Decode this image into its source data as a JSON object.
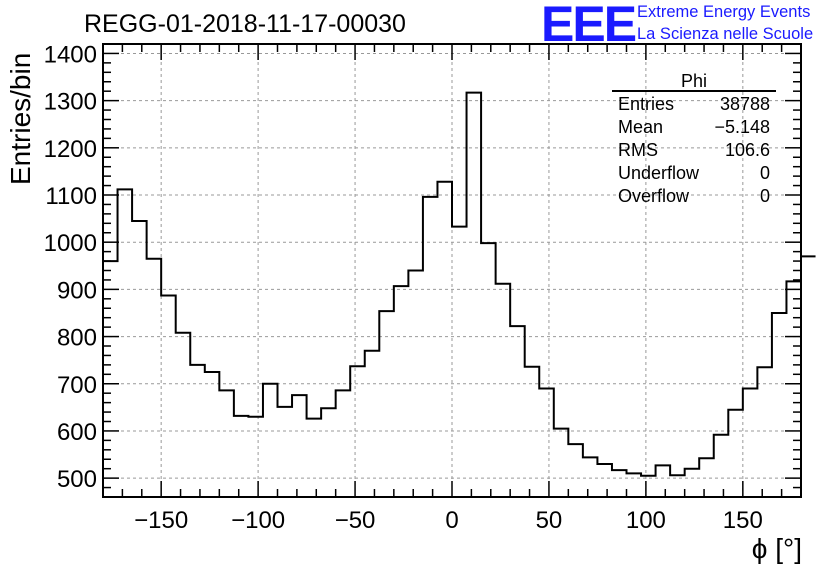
{
  "title": "REGG-01-2018-11-17-00030",
  "logo": {
    "mark": "EEE",
    "line1": "Extreme Energy Events",
    "line2": "La Scienza nelle Scuole",
    "color": "#1a1aff"
  },
  "stats": {
    "name": "Phi",
    "rows": [
      {
        "label": "Entries",
        "value": "38788"
      },
      {
        "label": "Mean",
        "value": "−5.148"
      },
      {
        "label": "RMS",
        "value": "106.6"
      },
      {
        "label": "Underflow",
        "value": "0"
      },
      {
        "label": "Overflow",
        "value": "0"
      }
    ]
  },
  "chart_data": {
    "type": "bar",
    "histogram": true,
    "title": "REGG-01-2018-11-17-00030",
    "xlabel": "ϕ [°]",
    "ylabel": "Entries/bin",
    "xlim": [
      -180,
      180
    ],
    "ylim": [
      460,
      1420
    ],
    "xticks": [
      -150,
      -100,
      -50,
      0,
      50,
      100,
      150
    ],
    "yticks": [
      500,
      600,
      700,
      800,
      900,
      1000,
      1100,
      1200,
      1300,
      1400
    ],
    "grid": true,
    "bin_edges_start": -180,
    "bin_width": 7.5,
    "values": [
      960,
      1112,
      1045,
      965,
      887,
      808,
      740,
      725,
      686,
      632,
      630,
      700,
      651,
      676,
      626,
      648,
      686,
      737,
      770,
      854,
      907,
      940,
      1096,
      1128,
      1033,
      1317,
      998,
      912,
      822,
      736,
      690,
      605,
      572,
      544,
      530,
      517,
      510,
      505,
      527,
      506,
      520,
      542,
      592,
      645,
      690,
      735,
      850,
      917,
      970
    ],
    "line_color": "#000000"
  }
}
